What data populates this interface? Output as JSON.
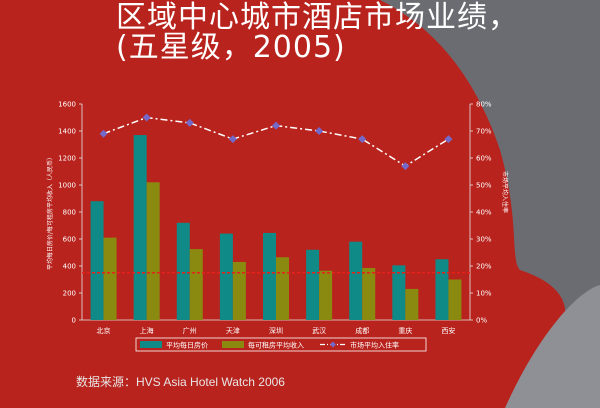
{
  "title": {
    "line1": "区域中心城市酒店市场业绩，",
    "line2": "(五星级，2005)"
  },
  "source": "数据来源：HVS Asia Hotel Watch 2006",
  "colors": {
    "background": "#b8231d",
    "bar_adr": "#0f8a86",
    "bar_revpar": "#8a8a10",
    "occupancy_line": "#ffffff",
    "occupancy_marker": "#7468c8",
    "reference_line": "#e8201a"
  },
  "chart_data": {
    "type": "bar",
    "categories": [
      "北京",
      "上海",
      "广州",
      "天津",
      "深圳",
      "武汉",
      "成都",
      "重庆",
      "西安"
    ],
    "series": [
      {
        "name": "平均每日房价",
        "type": "bar",
        "axis": "left",
        "values": [
          880,
          1370,
          720,
          640,
          645,
          520,
          580,
          405,
          450
        ]
      },
      {
        "name": "每可租房平均收入",
        "type": "bar",
        "axis": "left",
        "values": [
          610,
          1020,
          525,
          430,
          465,
          365,
          385,
          230,
          300
        ]
      },
      {
        "name": "市场平均入住率",
        "type": "line",
        "axis": "right",
        "values": [
          69,
          75,
          73,
          67,
          72,
          70,
          67,
          57,
          67
        ]
      }
    ],
    "ylabel": "平均每日房价/每可租房平均收入（人民币）",
    "ylabel_right": "市场平均入住率",
    "ylim": [
      0,
      1600
    ],
    "yticks": [
      0,
      200,
      400,
      600,
      800,
      1000,
      1200,
      1400,
      1600
    ],
    "ylim_right": [
      0,
      80
    ],
    "yticks_right": [
      "0%",
      "10%",
      "20%",
      "30%",
      "40%",
      "50%",
      "60%",
      "70%",
      "80%"
    ],
    "reference_line_value": 350,
    "legend_position": "bottom"
  }
}
